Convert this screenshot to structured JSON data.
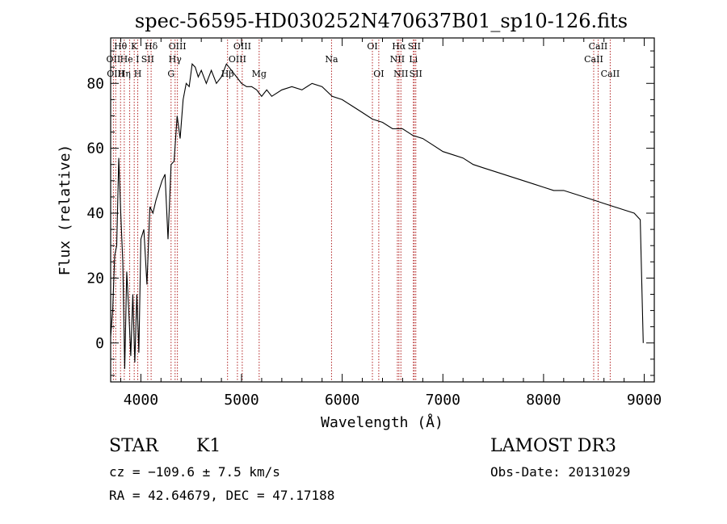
{
  "chart_data": {
    "type": "line",
    "title": "spec-56595-HD030252N470637B01_sp10-126.fits",
    "xlabel": "Wavelength (Å)",
    "ylabel": "Flux (relative)",
    "xlim": [
      3700,
      9100
    ],
    "ylim": [
      -12,
      94
    ],
    "xticks": [
      4000,
      5000,
      6000,
      7000,
      8000,
      9000
    ],
    "yticks": [
      0,
      20,
      40,
      60,
      80
    ],
    "series": [
      {
        "x": [
          3700,
          3720,
          3740,
          3760,
          3780,
          3800,
          3820,
          3840,
          3860,
          3880,
          3900,
          3920,
          3940,
          3960,
          3980,
          4000,
          4030,
          4060,
          4090,
          4120,
          4150,
          4180,
          4210,
          4240,
          4270,
          4300,
          4330,
          4360,
          4390,
          4420,
          4450,
          4480,
          4510,
          4540,
          4570,
          4600,
          4650,
          4700,
          4750,
          4800,
          4850,
          4900,
          4950,
          5000,
          5050,
          5100,
          5150,
          5200,
          5250,
          5300,
          5400,
          5500,
          5600,
          5700,
          5800,
          5900,
          6000,
          6100,
          6200,
          6300,
          6400,
          6500,
          6600,
          6700,
          6800,
          6900,
          7000,
          7100,
          7200,
          7300,
          7400,
          7500,
          7600,
          7700,
          7800,
          7900,
          8000,
          8100,
          8200,
          8300,
          8400,
          8500,
          8600,
          8700,
          8800,
          8900,
          8960,
          8990
        ],
        "y": [
          2,
          10,
          27,
          30,
          57,
          40,
          25,
          -8,
          22,
          10,
          -4,
          15,
          -6,
          15,
          -3,
          32,
          35,
          18,
          42,
          40,
          44,
          47,
          50,
          52,
          32,
          55,
          56,
          70,
          63,
          75,
          80,
          79,
          86,
          85,
          82,
          84,
          80,
          84,
          80,
          82,
          86,
          84,
          82,
          80,
          79,
          79,
          78,
          76,
          78,
          76,
          78,
          79,
          78,
          80,
          79,
          76,
          75,
          73,
          71,
          69,
          68,
          66,
          66,
          64,
          63,
          61,
          59,
          58,
          57,
          55,
          54,
          53,
          52,
          51,
          50,
          49,
          48,
          47,
          47,
          46,
          45,
          44,
          43,
          42,
          41,
          40,
          38,
          0
        ]
      }
    ],
    "lines": [
      {
        "name": "OII",
        "x": 3727,
        "tier": 1
      },
      {
        "name": "OIII",
        "x": 3750,
        "tier": 2
      },
      {
        "name": "Hθ",
        "x": 3798,
        "tier": 0
      },
      {
        "name": "Hη",
        "x": 3835,
        "tier": 2
      },
      {
        "name": "He I",
        "x": 3889,
        "tier": 1
      },
      {
        "name": "K",
        "x": 3934,
        "tier": 0
      },
      {
        "name": "H",
        "x": 3969,
        "tier": 2
      },
      {
        "name": "SII",
        "x": 4068,
        "tier": 1
      },
      {
        "name": "Hδ",
        "x": 4102,
        "tier": 0
      },
      {
        "name": "G",
        "x": 4300,
        "tier": 2
      },
      {
        "name": "Hγ",
        "x": 4340,
        "tier": 1
      },
      {
        "name": "OIII",
        "x": 4363,
        "tier": 0
      },
      {
        "name": "Hβ",
        "x": 4861,
        "tier": 2
      },
      {
        "name": "OIII",
        "x": 4959,
        "tier": 1
      },
      {
        "name": "OIII",
        "x": 5007,
        "tier": 0
      },
      {
        "name": "Mg",
        "x": 5175,
        "tier": 2
      },
      {
        "name": "Na",
        "x": 5894,
        "tier": 1
      },
      {
        "name": "OI",
        "x": 6300,
        "tier": 0
      },
      {
        "name": "OI",
        "x": 6363,
        "tier": 2
      },
      {
        "name": "NII",
        "x": 6548,
        "tier": 1
      },
      {
        "name": "Hα",
        "x": 6563,
        "tier": 0
      },
      {
        "name": "NII",
        "x": 6583,
        "tier": 2
      },
      {
        "name": "Li",
        "x": 6707,
        "tier": 1
      },
      {
        "name": "SII",
        "x": 6716,
        "tier": 0
      },
      {
        "name": "SII",
        "x": 6731,
        "tier": 2
      },
      {
        "name": "CaII",
        "x": 8498,
        "tier": 1
      },
      {
        "name": "CaII",
        "x": 8542,
        "tier": 0
      },
      {
        "name": "CaII",
        "x": 8662,
        "tier": 2
      }
    ],
    "colors": {
      "trace": "#000000",
      "linemarker": "#b22222"
    }
  },
  "info": {
    "object_class": "STAR",
    "subclass": "K1",
    "survey": "LAMOST DR3",
    "cz": "cz = −109.6 ± 7.5 km/s",
    "obs_date": "Obs-Date: 20131029",
    "radec": "RA =  42.64679, DEC =  47.17188"
  }
}
